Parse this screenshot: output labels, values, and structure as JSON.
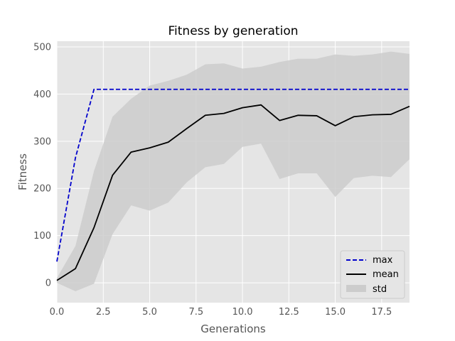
{
  "chart_data": {
    "type": "line",
    "title": "Fitness by generation",
    "xlabel": "Generations",
    "ylabel": "Fitness",
    "xlim": [
      0,
      19
    ],
    "ylim": [
      -42,
      512
    ],
    "xticks": [
      0.0,
      2.5,
      5.0,
      7.5,
      10.0,
      12.5,
      15.0,
      17.5
    ],
    "xtick_labels": [
      "0.0",
      "2.5",
      "5.0",
      "7.5",
      "10.0",
      "12.5",
      "15.0",
      "17.5"
    ],
    "yticks": [
      0,
      100,
      200,
      300,
      400,
      500
    ],
    "ytick_labels": [
      "0",
      "100",
      "200",
      "300",
      "400",
      "500"
    ],
    "grid": true,
    "legend_position": "bottom-right",
    "x": [
      0,
      1,
      2,
      3,
      4,
      5,
      6,
      7,
      8,
      9,
      10,
      11,
      12,
      13,
      14,
      15,
      16,
      17,
      18,
      19
    ],
    "series": [
      {
        "name": "max",
        "style": "dashed",
        "color": "#0000cc",
        "values": [
          45,
          265,
          410,
          410,
          410,
          410,
          410,
          410,
          410,
          410,
          410,
          410,
          410,
          410,
          410,
          410,
          410,
          410,
          410,
          410
        ]
      },
      {
        "name": "mean",
        "style": "solid",
        "color": "#000000",
        "values": [
          5,
          30,
          117,
          228,
          277,
          286,
          298,
          327,
          355,
          359,
          371,
          377,
          344,
          355,
          354,
          333,
          352,
          356,
          357,
          374
        ]
      }
    ],
    "band": {
      "name": "std",
      "color": "#cccccc",
      "upper": [
        10,
        78,
        237,
        352,
        390,
        418,
        428,
        441,
        463,
        465,
        454,
        458,
        468,
        475,
        475,
        484,
        481,
        484,
        490,
        485
      ],
      "lower": [
        0,
        -18,
        -2,
        103,
        164,
        153,
        170,
        213,
        245,
        252,
        288,
        295,
        220,
        232,
        232,
        182,
        222,
        227,
        224,
        262
      ]
    }
  }
}
